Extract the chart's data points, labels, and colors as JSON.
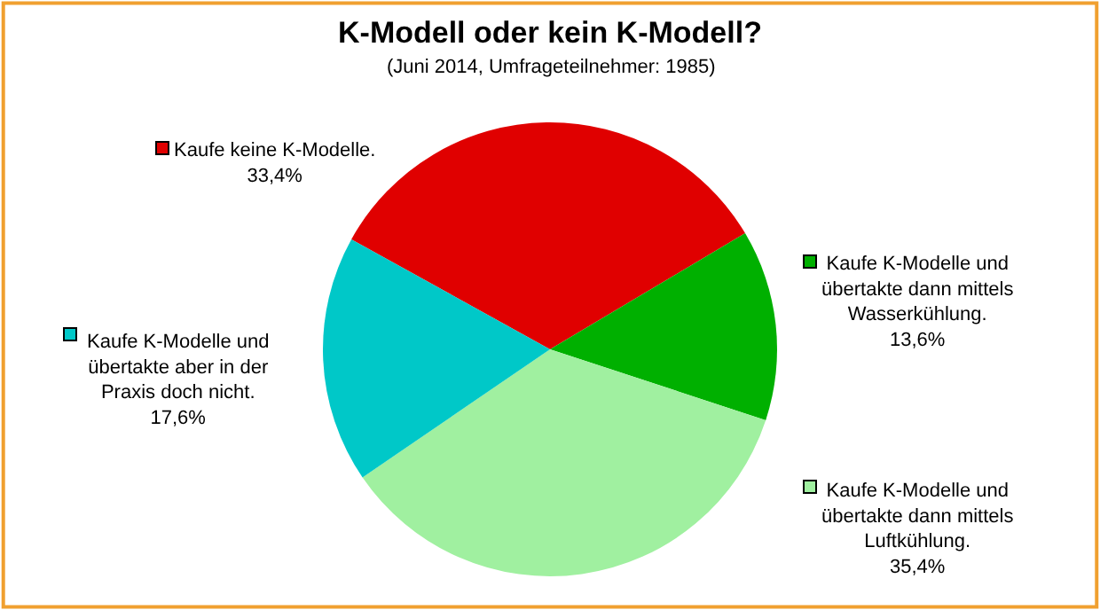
{
  "chart_data": {
    "type": "pie",
    "title": "K-Modell oder kein K-Modell?",
    "subtitle": "(Juni 2014, Umfrageteilnehmer: 1985)",
    "categories": [
      "Kaufe keine K-Modelle.",
      "Kaufe K-Modelle und\nübertakte dann mittels\nWasserkühlung.",
      "Kaufe K-Modelle und\nübertakte dann mittels\nLuftkühlung.",
      "Kaufe K-Modelle und\nübertakte aber in der\nPraxis doch nicht."
    ],
    "values": [
      33.4,
      13.6,
      35.4,
      17.6
    ],
    "value_labels": [
      "33,4%",
      "13,6%",
      "35,4%",
      "17,6%"
    ],
    "colors": [
      "#e00000",
      "#00b000",
      "#a0f0a0",
      "#00c8c8"
    ],
    "legend": "left"
  }
}
